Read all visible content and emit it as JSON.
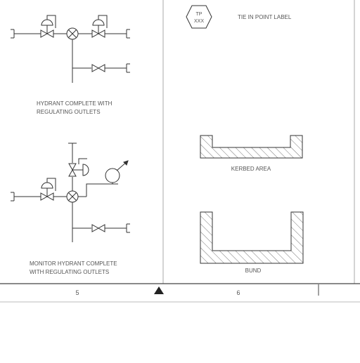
{
  "sheet": {
    "left_panel": {
      "symbol_1_caption": [
        "HYDRANT COMPLETE WITH",
        "REGULATING OUTLETS"
      ],
      "symbol_2_caption": [
        "MONITOR HYDRANT COMPLETE",
        "WITH REGULATING OUTLETS"
      ]
    },
    "right_panel": {
      "tie_in_tag_top": "TP",
      "tie_in_tag_bottom": "XXX",
      "tie_in_label": "TIE IN POINT LABEL",
      "kerbed_area_label": "KERBED AREA",
      "bund_label": "BUND"
    },
    "footer": {
      "page_left": "5",
      "page_right": "6",
      "marker_icon": "triangle-up-icon"
    }
  }
}
